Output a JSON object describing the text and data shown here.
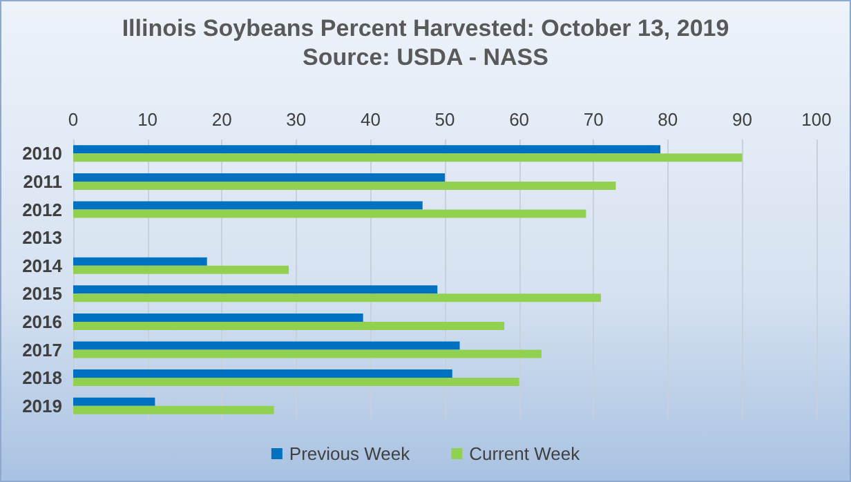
{
  "chart_data": {
    "type": "bar",
    "orientation": "horizontal",
    "title": "Illinois Soybeans Percent Harvested: October 13, 2019",
    "subtitle": "Source: USDA - NASS",
    "categories": [
      "2010",
      "2011",
      "2012",
      "2013",
      "2014",
      "2015",
      "2016",
      "2017",
      "2018",
      "2019"
    ],
    "series": [
      {
        "name": "Previous Week",
        "color": "#0070c0",
        "values": [
          79,
          50,
          47,
          null,
          18,
          49,
          39,
          52,
          51,
          11
        ]
      },
      {
        "name": "Current Week",
        "color": "#92d050",
        "values": [
          90,
          73,
          69,
          null,
          29,
          71,
          58,
          63,
          60,
          27
        ]
      }
    ],
    "xlim": [
      0,
      100
    ],
    "xticks": [
      0,
      10,
      20,
      30,
      40,
      50,
      60,
      70,
      80,
      90,
      100
    ],
    "grid": "x",
    "legend": "bottom"
  }
}
